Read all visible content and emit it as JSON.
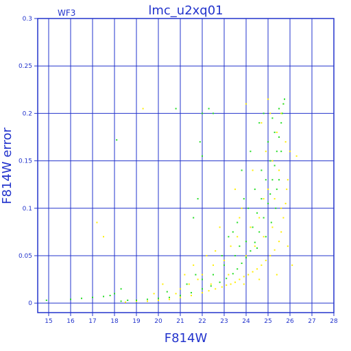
{
  "chart_data": {
    "type": "scatter",
    "title": "lmc_u2xq01",
    "corner_label": "WF3",
    "xlabel": "F814W",
    "ylabel": "F814W error",
    "xlim": [
      14.5,
      28
    ],
    "ylim": [
      -0.01,
      0.3
    ],
    "x_ticks": [
      15,
      16,
      17,
      18,
      19,
      20,
      21,
      22,
      23,
      24,
      25,
      26,
      27,
      28
    ],
    "y_ticks": [
      0,
      0.05,
      0.1,
      0.15,
      0.2,
      0.25,
      0.3
    ],
    "y_tick_labels": [
      "0",
      "0.05",
      "0.1",
      "0.15",
      "0.2",
      "0.25",
      "0.3"
    ],
    "grid": true,
    "series": [
      {
        "color": "#ffee00",
        "points": [
          [
            18.5,
            0.001
          ],
          [
            19.0,
            0.002
          ],
          [
            19.5,
            0.002
          ],
          [
            20.0,
            0.003
          ],
          [
            20.5,
            0.004
          ],
          [
            21.0,
            0.006
          ],
          [
            21.5,
            0.008
          ],
          [
            22.0,
            0.011
          ],
          [
            22.3,
            0.013
          ],
          [
            22.6,
            0.015
          ],
          [
            22.9,
            0.017
          ],
          [
            23.1,
            0.019
          ],
          [
            23.3,
            0.02
          ],
          [
            23.5,
            0.022
          ],
          [
            23.7,
            0.025
          ],
          [
            23.9,
            0.028
          ],
          [
            24.1,
            0.03
          ],
          [
            24.3,
            0.033
          ],
          [
            24.5,
            0.036
          ],
          [
            24.7,
            0.04
          ],
          [
            24.9,
            0.045
          ],
          [
            25.1,
            0.05
          ],
          [
            25.3,
            0.056
          ],
          [
            25.5,
            0.065
          ],
          [
            25.6,
            0.075
          ],
          [
            25.7,
            0.09
          ],
          [
            25.8,
            0.105
          ],
          [
            25.85,
            0.12
          ],
          [
            25.9,
            0.13
          ],
          [
            22.0,
            0.03
          ],
          [
            22.5,
            0.04
          ],
          [
            23.0,
            0.045
          ],
          [
            23.3,
            0.06
          ],
          [
            23.6,
            0.07
          ],
          [
            24.0,
            0.05
          ],
          [
            24.2,
            0.08
          ],
          [
            24.4,
            0.06
          ],
          [
            24.6,
            0.09
          ],
          [
            24.8,
            0.07
          ],
          [
            25.0,
            0.12
          ],
          [
            25.2,
            0.15
          ],
          [
            25.4,
            0.18
          ],
          [
            25.6,
            0.2
          ],
          [
            25.7,
            0.21
          ],
          [
            25.5,
            0.14
          ],
          [
            25.3,
            0.11
          ],
          [
            24.9,
            0.16
          ],
          [
            24.7,
            0.19
          ],
          [
            25.1,
            0.2
          ],
          [
            25.8,
            0.17
          ],
          [
            23.8,
            0.1
          ],
          [
            23.5,
            0.12
          ],
          [
            22.8,
            0.08
          ],
          [
            22.6,
            0.055
          ],
          [
            21.8,
            0.025
          ],
          [
            21.4,
            0.02
          ],
          [
            21.0,
            0.015
          ],
          [
            21.2,
            0.03
          ],
          [
            20.8,
            0.01
          ],
          [
            17.2,
            0.085
          ],
          [
            17.5,
            0.07
          ],
          [
            19.3,
            0.205
          ],
          [
            24.0,
            0.21
          ],
          [
            25.0,
            0.215
          ],
          [
            26.0,
            0.16
          ],
          [
            26.3,
            0.155
          ],
          [
            25.9,
            0.06
          ],
          [
            26.1,
            0.04
          ],
          [
            25.4,
            0.03
          ],
          [
            24.6,
            0.025
          ],
          [
            23.9,
            0.02
          ],
          [
            22.4,
            0.02
          ],
          [
            23.2,
            0.03
          ],
          [
            21.6,
            0.04
          ],
          [
            20.2,
            0.02
          ],
          [
            19.8,
            0.01
          ],
          [
            24.3,
            0.14
          ],
          [
            25.6,
            0.1
          ],
          [
            23.7,
            0.09
          ],
          [
            22.2,
            0.05
          ],
          [
            24.8,
            0.11
          ],
          [
            25.2,
            0.08
          ]
        ]
      },
      {
        "color": "#22dd22",
        "points": [
          [
            14.9,
            0.003
          ],
          [
            16.0,
            0.004
          ],
          [
            16.5,
            0.005
          ],
          [
            17.0,
            0.006
          ],
          [
            17.5,
            0.007
          ],
          [
            18.0,
            0.01
          ],
          [
            18.3,
            0.002
          ],
          [
            18.6,
            0.003
          ],
          [
            19.0,
            0.003
          ],
          [
            19.5,
            0.004
          ],
          [
            20.0,
            0.005
          ],
          [
            20.5,
            0.006
          ],
          [
            21.0,
            0.008
          ],
          [
            21.5,
            0.011
          ],
          [
            22.0,
            0.015
          ],
          [
            22.4,
            0.018
          ],
          [
            22.8,
            0.022
          ],
          [
            23.1,
            0.026
          ],
          [
            23.4,
            0.031
          ],
          [
            23.6,
            0.036
          ],
          [
            23.8,
            0.042
          ],
          [
            24.0,
            0.048
          ],
          [
            24.2,
            0.055
          ],
          [
            24.4,
            0.064
          ],
          [
            24.6,
            0.075
          ],
          [
            24.8,
            0.09
          ],
          [
            25.0,
            0.105
          ],
          [
            25.1,
            0.115
          ],
          [
            25.2,
            0.13
          ],
          [
            25.3,
            0.145
          ],
          [
            25.4,
            0.16
          ],
          [
            25.5,
            0.175
          ],
          [
            25.6,
            0.19
          ],
          [
            25.65,
            0.2
          ],
          [
            25.7,
            0.21
          ],
          [
            25.75,
            0.215
          ],
          [
            22.0,
            0.025
          ],
          [
            22.5,
            0.03
          ],
          [
            23.0,
            0.04
          ],
          [
            23.5,
            0.05
          ],
          [
            24.0,
            0.065
          ],
          [
            24.3,
            0.08
          ],
          [
            24.5,
            0.095
          ],
          [
            24.7,
            0.11
          ],
          [
            24.9,
            0.13
          ],
          [
            25.1,
            0.15
          ],
          [
            25.3,
            0.18
          ],
          [
            25.5,
            0.205
          ],
          [
            23.2,
            0.07
          ],
          [
            23.6,
            0.085
          ],
          [
            24.1,
            0.1
          ],
          [
            24.4,
            0.12
          ],
          [
            24.7,
            0.14
          ],
          [
            25.0,
            0.17
          ],
          [
            25.2,
            0.195
          ],
          [
            20.8,
            0.205
          ],
          [
            22.0,
            0.2
          ],
          [
            22.3,
            0.205
          ],
          [
            22.5,
            0.2
          ],
          [
            21.9,
            0.17
          ],
          [
            22.0,
            0.155
          ],
          [
            21.8,
            0.11
          ],
          [
            21.6,
            0.09
          ],
          [
            18.1,
            0.172
          ],
          [
            18.3,
            0.015
          ],
          [
            17.8,
            0.008
          ],
          [
            24.8,
            0.2
          ],
          [
            24.6,
            0.19
          ],
          [
            25.4,
            0.12
          ],
          [
            23.9,
            0.11
          ],
          [
            23.4,
            0.075
          ],
          [
            22.9,
            0.05
          ],
          [
            21.3,
            0.02
          ],
          [
            21.7,
            0.03
          ],
          [
            20.4,
            0.012
          ],
          [
            24.2,
            0.16
          ],
          [
            23.8,
            0.14
          ],
          [
            25.6,
            0.16
          ],
          [
            25.5,
            0.13
          ],
          [
            25.35,
            0.1
          ],
          [
            25.15,
            0.085
          ],
          [
            24.9,
            0.07
          ],
          [
            24.5,
            0.058
          ],
          [
            23.7,
            0.06
          ]
        ]
      }
    ]
  }
}
